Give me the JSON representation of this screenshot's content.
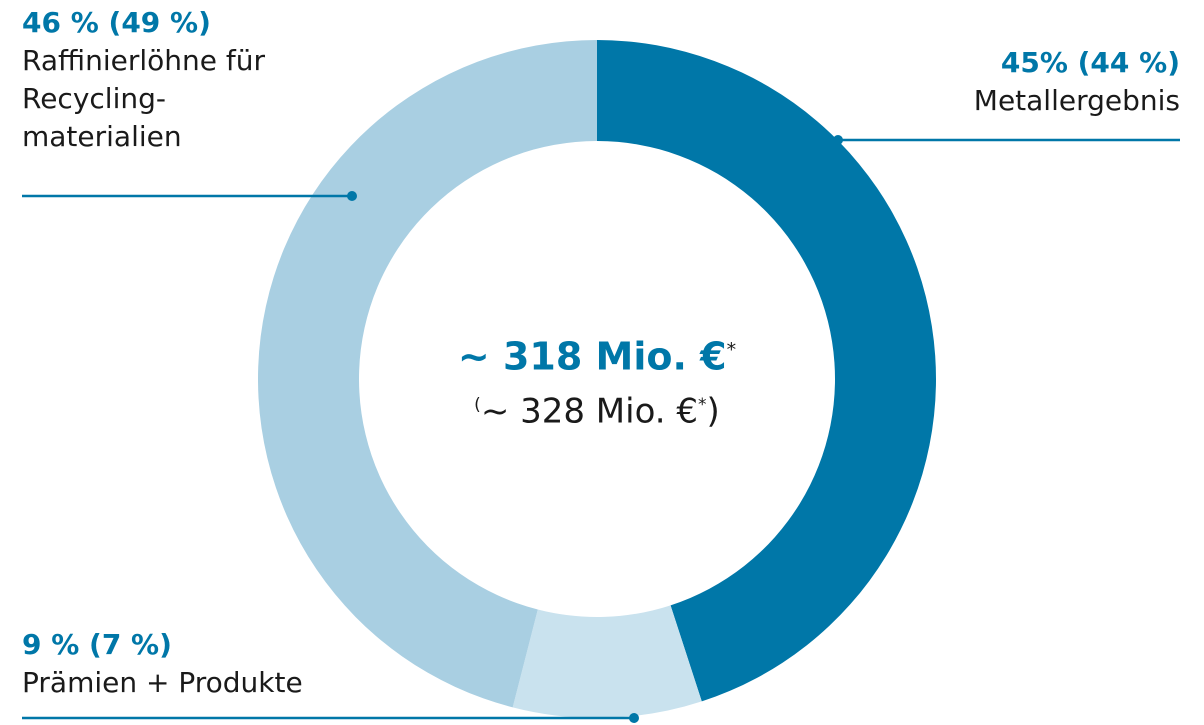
{
  "chart_data": {
    "type": "donut",
    "categories": [
      "Metallergebnis",
      "Prämien + Produkte",
      "Raffinierlöhne für\nRecycling-\nmaterialien"
    ],
    "values": [
      45,
      9,
      46
    ],
    "value_labels": [
      "45% (44 %)",
      "9 % (7 %)",
      "46 % (49 %)"
    ],
    "colors": [
      "#0077a8",
      "#c9e2ee",
      "#a9cfe2"
    ],
    "center_text": {
      "main": "~ 318 Mio. €",
      "main_mark": "*",
      "prior_open": "(",
      "prior": "~ 328 Mio. €",
      "prior_mark": "*",
      "prior_close": ")"
    }
  }
}
